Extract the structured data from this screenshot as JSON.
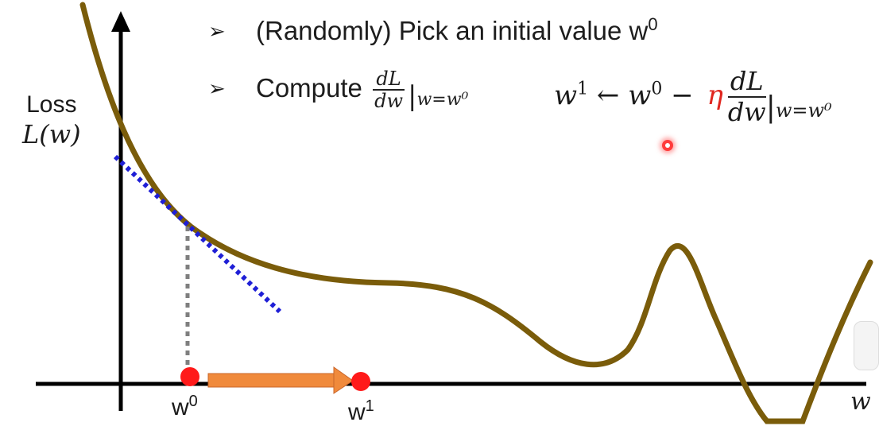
{
  "bullets": {
    "b1_text": "(Randomly) Pick an initial value w",
    "b1_sup": "0",
    "b2_text": "Compute",
    "b2_num": "dL",
    "b2_den": "dw",
    "b2_eval": "|",
    "b2_eval_sub": "w=w⁰",
    "marker": "➢"
  },
  "update_rule": {
    "lhs": "w",
    "lhs_sup": "1",
    "arrow": " ← ",
    "w0": "w",
    "w0_sup": "0",
    "minus": " − ",
    "eta": "η",
    "num": "dL",
    "den": "dw",
    "evalbar": "|",
    "eval_sub": "w=w⁰"
  },
  "axis": {
    "ylabel_line1": "Loss",
    "ylabel_line2": "L(w)",
    "x_label": "w",
    "point0": "w",
    "point0_sup": "0",
    "point1": "w",
    "point1_sup": "1"
  },
  "colors": {
    "curve": "#7a5c0a",
    "tangent": "#1f1fd6",
    "step_arrow": "#f08a3c",
    "point": "#ff1a1a",
    "eta": "#e0261f"
  },
  "icons": {
    "bullet": "arrowhead-bullet-icon",
    "laser": "laser-pointer-icon"
  }
}
